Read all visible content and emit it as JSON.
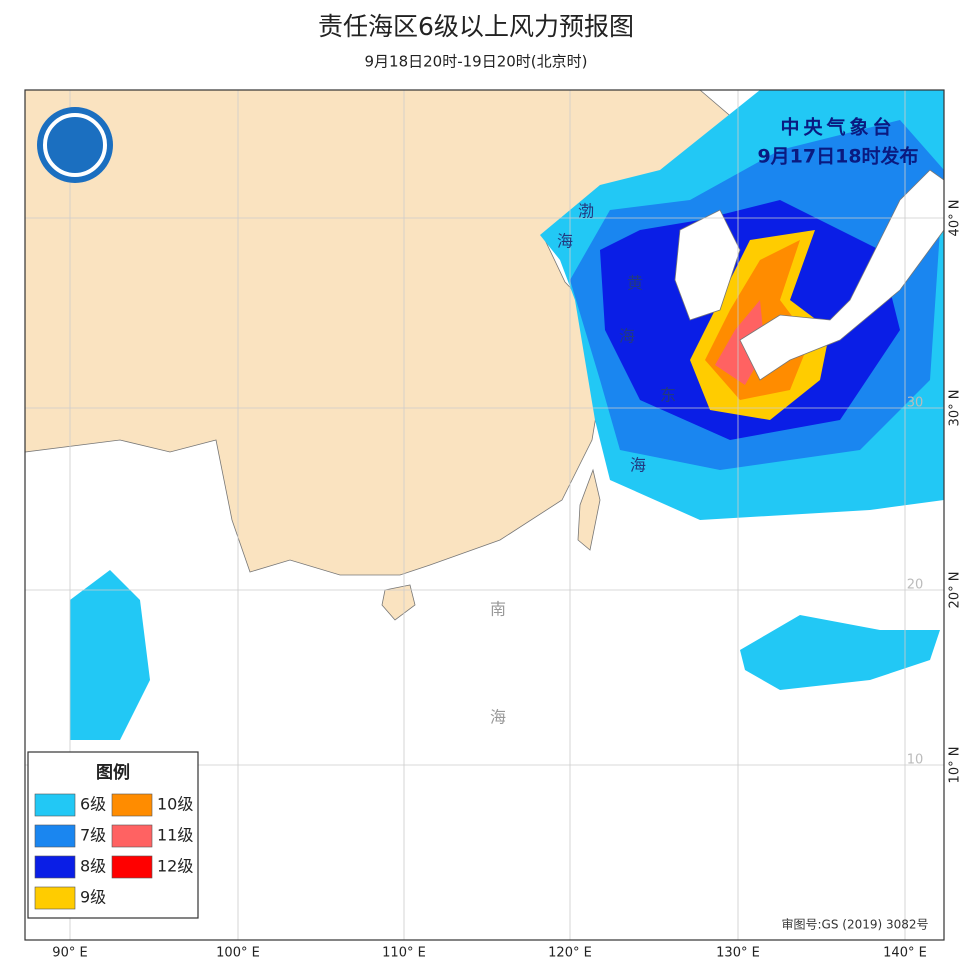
{
  "header": {
    "title": "责任海区6级以上风力预报图",
    "subtitle": "9月18日20时-19日20时(北京时)"
  },
  "issuer": {
    "name": "中央气象台",
    "time": "9月17日18时发布"
  },
  "legend": {
    "title": "图例",
    "items": [
      {
        "label": "6级",
        "color": "#22c8f5"
      },
      {
        "label": "7级",
        "color": "#1a86f0"
      },
      {
        "label": "8级",
        "color": "#0a1ee6"
      },
      {
        "label": "9级",
        "color": "#ffcc00"
      },
      {
        "label": "10级",
        "color": "#ff8c00"
      },
      {
        "label": "11级",
        "color": "#ff6262"
      },
      {
        "label": "12级",
        "color": "#ff0000"
      }
    ]
  },
  "sea_labels": [
    "渤",
    "海",
    "黄",
    "海",
    "东",
    "海",
    "南",
    "海"
  ],
  "longitude_labels": [
    "90° E",
    "100° E",
    "110° E",
    "120° E",
    "130° E",
    "140° E"
  ],
  "latitude_labels": [
    "40° N",
    "30° N",
    "20° N",
    "10° N"
  ],
  "inner_latitude_labels": [
    "30",
    "20",
    "10"
  ],
  "approval": "审图号:GS (2019) 3082号"
}
